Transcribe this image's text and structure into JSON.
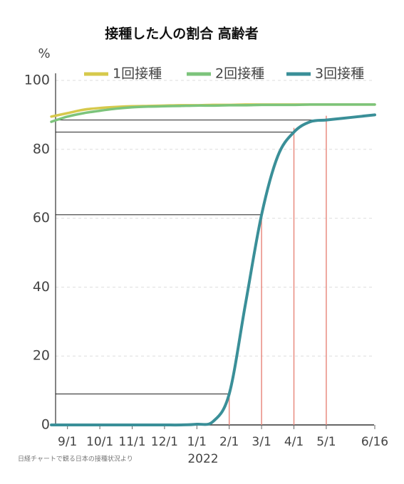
{
  "chart_data": {
    "type": "line",
    "title": "接種した人の割合 高齢者",
    "y_unit": "%",
    "year_label": "2022",
    "source": "日経チャートで観る日本の接種状況より",
    "categories": [
      null,
      "9/1",
      null,
      "10/1",
      null,
      "11/1",
      null,
      "12/1",
      null,
      "1/1",
      null,
      "2/1",
      null,
      "3/1",
      null,
      "4/1",
      null,
      "5/1",
      null,
      null,
      "6/16"
    ],
    "series": [
      {
        "name": "1回接種",
        "color": "#d6c94c",
        "values": [
          89.5,
          90.5,
          91.5,
          92,
          92.3,
          92.5,
          92.6,
          92.7,
          92.8,
          92.8,
          92.9,
          92.9,
          93,
          93,
          93,
          93,
          93,
          93,
          93,
          93,
          93
        ]
      },
      {
        "name": "2回接種",
        "color": "#7cc47b",
        "values": [
          88,
          89.5,
          90.5,
          91.2,
          91.8,
          92.2,
          92.4,
          92.5,
          92.6,
          92.7,
          92.7,
          92.8,
          92.8,
          92.9,
          92.9,
          92.9,
          93,
          93,
          93,
          93,
          93
        ]
      },
      {
        "name": "3回接種",
        "color": "#3a8f98",
        "values": [
          0,
          0,
          0,
          0,
          0,
          0,
          0,
          0,
          0,
          0.2,
          1,
          9,
          35,
          61,
          78,
          85,
          88,
          88.5,
          89,
          89.5,
          90
        ]
      }
    ],
    "reference_points": [
      11,
      13,
      15,
      17
    ],
    "ylim": [
      0,
      100
    ],
    "yticks": [
      0,
      20,
      40,
      60,
      80,
      100
    ],
    "grid": true
  }
}
